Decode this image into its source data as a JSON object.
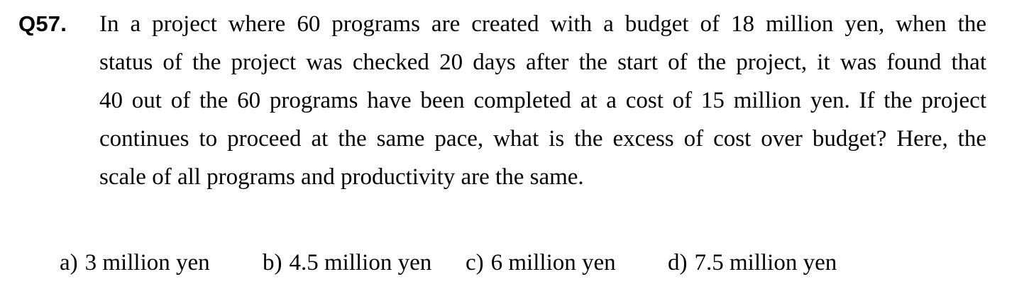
{
  "question": {
    "number": "Q57.",
    "lines": [
      "In a project where 60 programs are created with a budget of 18 million yen, when the",
      "status of the project was checked 20 days after the start of the project, it was found that",
      "40 out of the 60 programs have been completed at a cost of 15 million yen. If the project",
      "continues to proceed at the same pace, what is the excess of cost over budget? Here, the",
      "scale of all programs and productivity are the same."
    ]
  },
  "options": [
    {
      "letter": "a)",
      "text": "3 million yen"
    },
    {
      "letter": "b)",
      "text": "4.5 million yen"
    },
    {
      "letter": "c)",
      "text": "6 million yen"
    },
    {
      "letter": "d)",
      "text": "7.5 million yen"
    }
  ]
}
